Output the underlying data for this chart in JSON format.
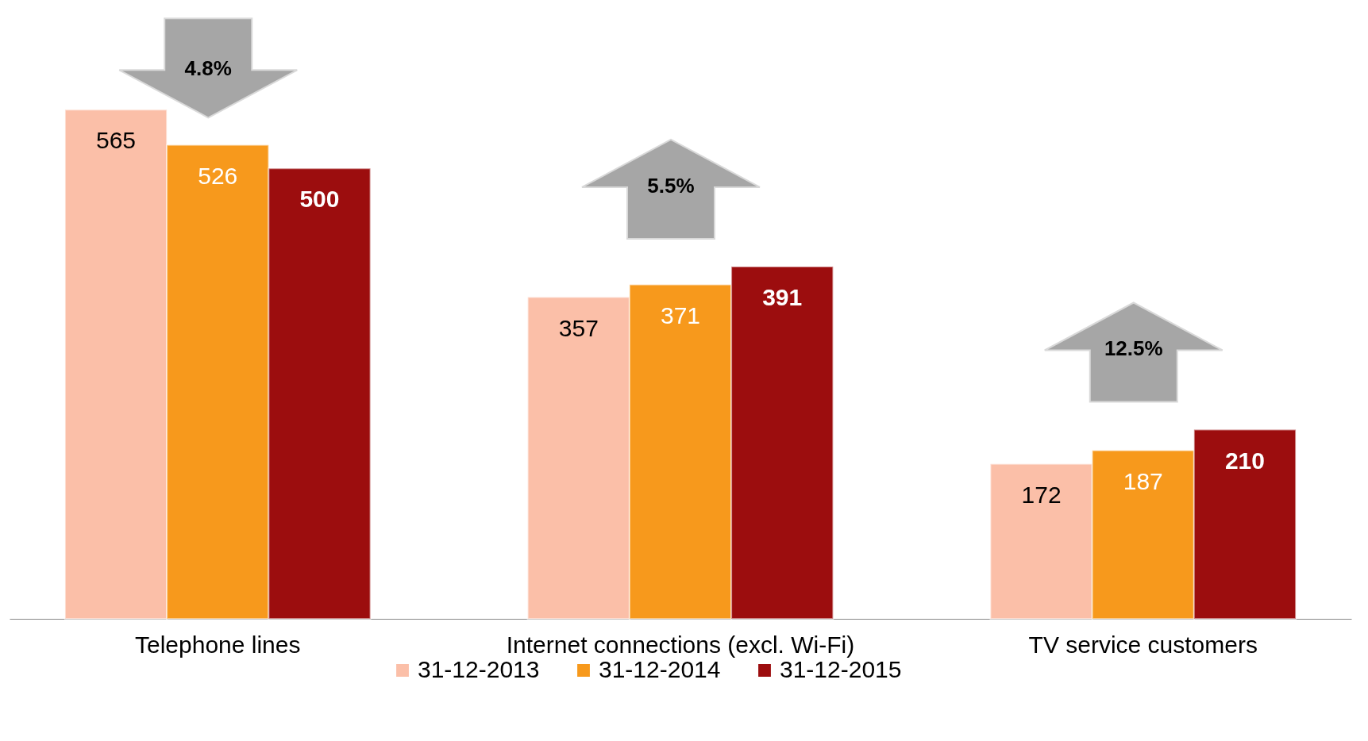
{
  "chart_data": {
    "type": "bar",
    "categories": [
      "Telephone lines",
      "Internet connections (excl. Wi-Fi)",
      "TV service customers"
    ],
    "series": [
      {
        "name": "31-12-2013",
        "color": "#fbbfa8",
        "values": [
          565,
          357,
          172
        ]
      },
      {
        "name": "31-12-2014",
        "color": "#f7991c",
        "values": [
          526,
          371,
          187
        ]
      },
      {
        "name": "31-12-2015",
        "color": "#9c0d0e",
        "values": [
          500,
          391,
          210
        ]
      }
    ],
    "data_labels": true,
    "legend": "bottom",
    "grid": false,
    "annotations": [
      "4.8%",
      "5.5%",
      "12.5%"
    ]
  }
}
